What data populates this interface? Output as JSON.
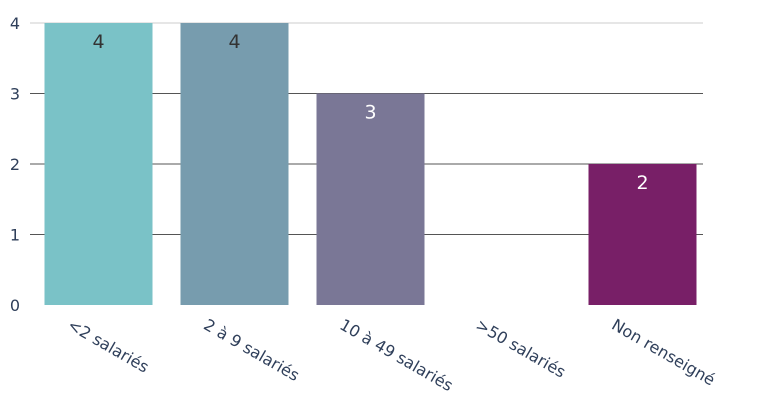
{
  "chart_data": {
    "type": "bar",
    "title": "",
    "xlabel": "",
    "ylabel": "",
    "categories": [
      "<2 salariés",
      "2 à 9 salariés",
      "10 à 49 salariés",
      ">50 salariés",
      "Non renseigné"
    ],
    "values": [
      4,
      4,
      3,
      0,
      2
    ],
    "data_labels": [
      "4",
      "4",
      "3",
      "",
      "2"
    ],
    "colors": [
      "#7ac2c7",
      "#779cae",
      "#7a7796",
      "#7a7796",
      "#781f67"
    ],
    "label_colors": [
      "#333333",
      "#333333",
      "#ffffff",
      "#ffffff",
      "#ffffff"
    ],
    "ylim": [
      0,
      4
    ],
    "yticks": [
      0,
      1,
      2,
      3,
      4
    ],
    "grid": true,
    "legend": "none"
  }
}
